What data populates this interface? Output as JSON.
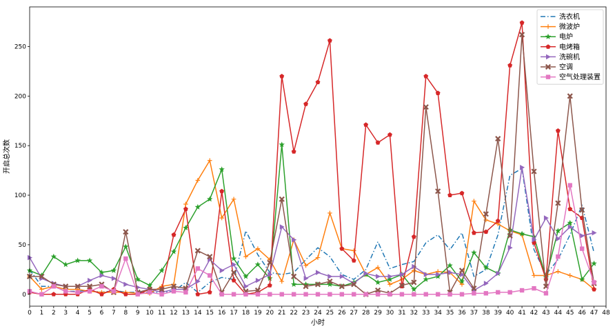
{
  "chart_data": {
    "type": "line",
    "title": "",
    "xlabel": "小时",
    "ylabel": "开启总次数",
    "xlim": [
      0,
      48
    ],
    "ylim": [
      -12,
      290
    ],
    "x_ticks": [
      0,
      1,
      2,
      3,
      4,
      5,
      6,
      7,
      8,
      9,
      10,
      11,
      12,
      13,
      14,
      15,
      16,
      17,
      18,
      19,
      20,
      21,
      22,
      23,
      24,
      25,
      26,
      27,
      28,
      29,
      30,
      31,
      32,
      33,
      34,
      35,
      36,
      37,
      38,
      39,
      40,
      41,
      42,
      43,
      44,
      45,
      46,
      47,
      48
    ],
    "y_ticks": [
      0,
      50,
      100,
      150,
      200,
      250
    ],
    "legend_position": "top-right",
    "x": [
      0,
      1,
      2,
      3,
      4,
      5,
      6,
      7,
      8,
      9,
      10,
      11,
      12,
      13,
      14,
      15,
      16,
      17,
      18,
      19,
      20,
      21,
      22,
      23,
      24,
      25,
      26,
      27,
      28,
      29,
      30,
      31,
      32,
      33,
      34,
      35,
      36,
      37,
      38,
      39,
      40,
      41,
      42,
      43,
      44,
      45,
      46,
      47
    ],
    "series": [
      {
        "name": "洗衣机",
        "color": "#1f77b4",
        "dash": "dashdot",
        "marker": "none",
        "values": [
          25,
          8,
          8,
          3,
          3,
          4,
          2,
          4,
          2,
          2,
          2,
          2,
          3,
          12,
          2,
          12,
          17,
          15,
          64,
          40,
          22,
          20,
          22,
          35,
          47,
          38,
          20,
          15,
          25,
          53,
          26,
          30,
          33,
          52,
          60,
          45,
          62,
          18,
          25,
          60,
          120,
          127,
          45,
          20,
          35,
          60,
          90,
          42
        ]
      },
      {
        "name": "微波炉",
        "color": "#ff7f0e",
        "dash": "solid",
        "marker": "plus",
        "values": [
          18,
          5,
          8,
          5,
          5,
          3,
          2,
          2,
          2,
          1,
          1,
          8,
          10,
          91,
          115,
          135,
          77,
          96,
          38,
          46,
          35,
          13,
          55,
          29,
          37,
          82,
          46,
          44,
          20,
          27,
          10,
          15,
          24,
          20,
          23,
          22,
          10,
          94,
          75,
          71,
          64,
          60,
          19,
          19,
          23,
          19,
          15,
          5
        ]
      },
      {
        "name": "电炉",
        "color": "#2ca02c",
        "dash": "solid",
        "marker": "star",
        "values": [
          24,
          19,
          38,
          30,
          34,
          34,
          22,
          24,
          48,
          15,
          9,
          24,
          43,
          67,
          88,
          96,
          126,
          36,
          18,
          30,
          16,
          151,
          10,
          10,
          10,
          10,
          8,
          12,
          20,
          12,
          15,
          20,
          5,
          15,
          18,
          29,
          13,
          42,
          27,
          21,
          65,
          61,
          58,
          17,
          64,
          72,
          15,
          31
        ]
      },
      {
        "name": "电烤箱",
        "color": "#d62728",
        "dash": "solid",
        "marker": "pentagon",
        "values": [
          2,
          0,
          0,
          0,
          0,
          5,
          0,
          5,
          0,
          0,
          5,
          5,
          60,
          86,
          0,
          2,
          104,
          14,
          0,
          2,
          9,
          220,
          144,
          192,
          214,
          256,
          46,
          34,
          171,
          153,
          161,
          8,
          58,
          220,
          203,
          100,
          102,
          62,
          63,
          74,
          231,
          274,
          52,
          15,
          165,
          86,
          77,
          5
        ]
      },
      {
        "name": "洗碗机",
        "color": "#9467bd",
        "dash": "solid",
        "marker": "triangle-right",
        "values": [
          37,
          16,
          11,
          8,
          8,
          14,
          19,
          16,
          10,
          7,
          5,
          2,
          5,
          5,
          13,
          35,
          24,
          30,
          8,
          14,
          20,
          68,
          55,
          16,
          22,
          18,
          18,
          11,
          21,
          18,
          18,
          20,
          28,
          20,
          20,
          22,
          20,
          4,
          11,
          21,
          47,
          128,
          55,
          77,
          56,
          68,
          59,
          62
        ]
      },
      {
        "name": "空调",
        "color": "#8c564b",
        "dash": "solid",
        "marker": "x",
        "values": [
          18,
          18,
          10,
          8,
          8,
          8,
          10,
          2,
          63,
          2,
          5,
          5,
          8,
          6,
          44,
          38,
          2,
          22,
          3,
          4,
          32,
          96,
          18,
          8,
          10,
          13,
          8,
          10,
          0,
          4,
          1,
          9,
          12,
          189,
          104,
          2,
          24,
          6,
          81,
          157,
          59,
          262,
          124,
          8,
          92,
          200,
          85,
          11
        ]
      },
      {
        "name": "空气处理装置",
        "color": "#e377c2",
        "dash": "solid",
        "marker": "square",
        "values": [
          3,
          0,
          8,
          3,
          2,
          3,
          8,
          3,
          36,
          0,
          2,
          0,
          3,
          2,
          26,
          19,
          0,
          0,
          0,
          0,
          0,
          0,
          0,
          0,
          0,
          0,
          0,
          0,
          0,
          0,
          0,
          0,
          0,
          0,
          0,
          0,
          0,
          1,
          1,
          2,
          2,
          4,
          6,
          1,
          38,
          110,
          46,
          12
        ]
      }
    ]
  }
}
